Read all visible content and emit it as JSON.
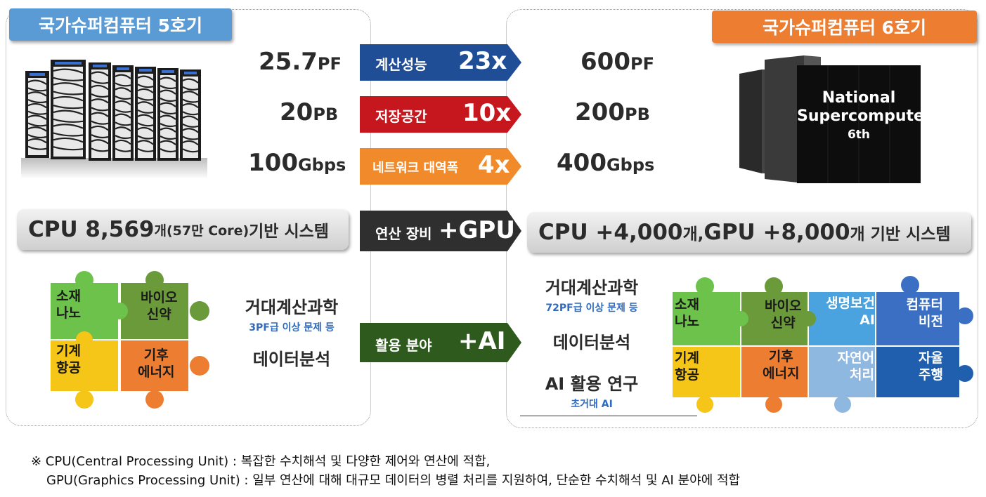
{
  "left_title": "국가슈퍼컴퓨터 5호기",
  "right_title": "국가슈퍼컴퓨터 6호기",
  "left_stats": [
    {
      "num": "25.7",
      "unit": "PF"
    },
    {
      "num": "20",
      "unit": "PB"
    },
    {
      "num": "100",
      "unit": "Gbps"
    }
  ],
  "right_stats": [
    {
      "num": "600",
      "unit": "PF"
    },
    {
      "num": "200",
      "unit": "PB"
    },
    {
      "num": "400",
      "unit": "Gbps"
    }
  ],
  "arrows": [
    {
      "label": "계산성능",
      "mult": "23x",
      "color": "#1f4e97"
    },
    {
      "label": "저장공간",
      "mult": "10x",
      "color": "#c5171d"
    },
    {
      "label": "네트워크 대역폭",
      "mult": "4x",
      "color": "#f08a2a"
    },
    {
      "label": "연산 장비",
      "mult": "+GPU",
      "color": "#2f2f2f"
    },
    {
      "label": "활용 분야",
      "mult": "+AI",
      "color": "#2f5a1e"
    }
  ],
  "left_system": {
    "a": "CPU 8,569",
    "b": "개(57만 Core) ",
    "c": "기반 시스템"
  },
  "right_system": {
    "a": "CPU +4,000",
    "b": "개, ",
    "c": "GPU +8,000",
    "d": "개 기반 시스템"
  },
  "left_use": {
    "main1": "거대계산과학",
    "sub1": "3PF급 이상 문제 등",
    "main2": "데이터분석"
  },
  "right_use": {
    "main1": "거대계산과학",
    "sub1": "72PF급 이상 문제 등",
    "main2": "데이터분석",
    "main3": "AI 활용 연구",
    "sub3": "초거대 AI"
  },
  "left_puzzle": [
    {
      "l1": "소재",
      "l2": "나노",
      "color": "#6cc24a"
    },
    {
      "l1": "바이오",
      "l2": "신약",
      "color": "#6a9a3a"
    },
    {
      "l1": "기계",
      "l2": "항공",
      "color": "#f5c518"
    },
    {
      "l1": "기후",
      "l2": "에너지",
      "color": "#ed7d31"
    }
  ],
  "right_puzzle": [
    {
      "l1": "소재",
      "l2": "나노",
      "color": "#6cc24a"
    },
    {
      "l1": "바이오",
      "l2": "신약",
      "color": "#6a9a3a"
    },
    {
      "l1": "생명보건",
      "l2": "AI",
      "color": "#4aa3df"
    },
    {
      "l1": "컴퓨터",
      "l2": "비전",
      "color": "#3b6fc4"
    },
    {
      "l1": "기계",
      "l2": "항공",
      "color": "#f5c518"
    },
    {
      "l1": "기후",
      "l2": "에너지",
      "color": "#ed7d31"
    },
    {
      "l1": "자연어",
      "l2": "처리",
      "color": "#8fb8e0"
    },
    {
      "l1": "자율",
      "l2": "주행",
      "color": "#1f5fae"
    }
  ],
  "rack_text": {
    "l1": "National",
    "l2": "Supercomputer",
    "l3": "6th"
  },
  "footnote": {
    "line1": "※ CPU(Central Processing Unit) : 복잡한 수치해석 및 다양한 제어와 연산에 적합,",
    "line2": "GPU(Graphics Processing Unit) : 일부 연산에 대해 대규모 데이터의 병렬 처리를 지원하여, 단순한 수치해석 및 AI 분야에 적합"
  }
}
